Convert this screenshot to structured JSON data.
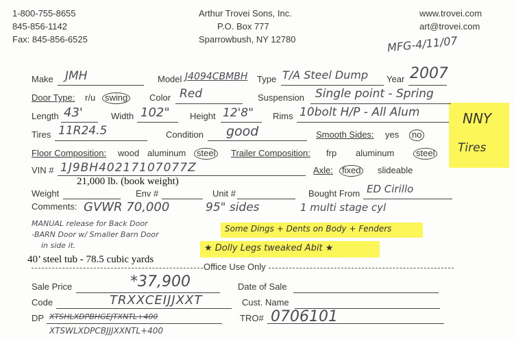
{
  "header": {
    "phone_toll_free": "1-800-755-8655",
    "phone": "845-856-1142",
    "fax": "Fax: 845-856-6525",
    "company": "Arthur Trovei Sons, Inc.",
    "po_box": "P.O. Box 777",
    "city": "Sparrowbush, NY 12780",
    "website": "www.trovei.com",
    "email": "art@trovei.com",
    "mfg_note": "MFG-4/11/07"
  },
  "fields": {
    "make": {
      "label": "Make",
      "value": "JMH"
    },
    "model": {
      "label": "Model",
      "value": "J4094CBMBH"
    },
    "type": {
      "label": "Type",
      "value": "T/A Steel Dump"
    },
    "year": {
      "label": "Year",
      "value": "2007"
    },
    "door_type": {
      "label": "Door Type:",
      "options": [
        "r/u",
        "swing"
      ],
      "selected": "swing"
    },
    "color": {
      "label": "Color",
      "value": "Red"
    },
    "suspension": {
      "label": "Suspension",
      "value": "Single point - Spring"
    },
    "length": {
      "label": "Length",
      "value": "43'"
    },
    "width": {
      "label": "Width",
      "value": "102\""
    },
    "height": {
      "label": "Height",
      "value": "12'8\""
    },
    "rims": {
      "label": "Rims",
      "value": "10bolt H/P - All Alum"
    },
    "tires": {
      "label": "Tires",
      "value": "11R24.5"
    },
    "condition": {
      "label": "Condition",
      "value": "good"
    },
    "smooth_sides": {
      "label": "Smooth Sides:",
      "options": [
        "yes",
        "no"
      ],
      "selected": "no"
    },
    "floor_composition": {
      "label": "Floor Composition:",
      "options": [
        "wood",
        "aluminum",
        "steel"
      ],
      "selected": "steel"
    },
    "trailer_composition": {
      "label": "Trailer Composition:",
      "options": [
        "frp",
        "aluminum",
        "steel"
      ],
      "selected": "steel"
    },
    "vin": {
      "label": "VIN #",
      "value": "1J9BH40217107077Z"
    },
    "axle": {
      "label": "Axle:",
      "options": [
        "fixed",
        "slideable"
      ],
      "selected": "fixed"
    },
    "weight": {
      "label": "Weight",
      "value": "21,000 lb. (book weight)"
    },
    "env": {
      "label": "Env #"
    },
    "unit": {
      "label": "Unit #"
    },
    "bought_from": {
      "label": "Bought From",
      "value": "ED Cirillo"
    },
    "comments_label": "Comments:",
    "comments": [
      "GVWR 70,000",
      "95\" sides",
      "1 multi stage cyl",
      "MANUAL release for Back Door",
      "-BARN Door w/ Smaller Barn Door",
      "in side it.",
      "Some Dings + Dents on Body + Fenders",
      "★ Dolly Legs tweaked Abit ★"
    ],
    "highlight_note": [
      "NNY",
      "Tires"
    ],
    "typed_note": "40’ steel tub - 78.5 cubic yards"
  },
  "office": {
    "title": "Office Use Only",
    "sale_price": {
      "label": "Sale Price",
      "value": "*37,900"
    },
    "date_of_sale": {
      "label": "Date of Sale"
    },
    "code": {
      "label": "Code",
      "value": "TRXXCEIJJXXT"
    },
    "cust_name": {
      "label": "Cust. Name"
    },
    "dp": {
      "label": "DP",
      "value_struck": "XTSHLXDPBHGEJTXNTL+400",
      "value": "XTSWLXDPCBJJJXXNTL+400"
    },
    "tro": {
      "label": "TRO#",
      "value": "0706101"
    }
  },
  "colors": {
    "highlight": "#fbf53c",
    "print": "#333a33",
    "ink": "#4a4a55"
  }
}
